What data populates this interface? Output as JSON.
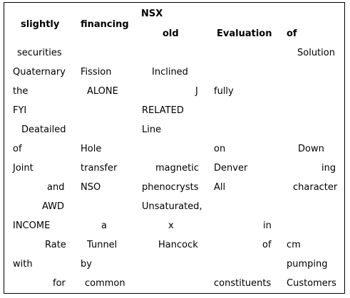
{
  "headers": [
    {
      "top": "",
      "bottom": "slightly"
    },
    {
      "top": "",
      "bottom": "financing"
    },
    {
      "top": "NSX",
      "bottom": "old"
    },
    {
      "top": "",
      "bottom": "Evaluation"
    },
    {
      "top": "",
      "bottom": "of"
    }
  ],
  "rows": [
    [
      "securities",
      "",
      "",
      "",
      "Solution"
    ],
    [
      "Quaternary",
      "Fission",
      "Inclined",
      "",
      ""
    ],
    [
      "the",
      "ALONE",
      "J",
      "fully",
      ""
    ],
    [
      "FYI",
      "",
      "RELATED",
      "",
      ""
    ],
    [
      "Deatailed",
      "",
      "Line",
      "",
      ""
    ],
    [
      "of",
      "Hole",
      "",
      "on",
      "Down"
    ],
    [
      "Joint",
      "transfer",
      "magnetic",
      "Denver",
      "ing"
    ],
    [
      "and",
      "NSO",
      "phenocrysts",
      "All",
      "character"
    ],
    [
      "AWD",
      "",
      "Unsaturated,",
      "",
      ""
    ],
    [
      "INCOME",
      "a",
      "x",
      "in",
      ""
    ],
    [
      "Rate",
      "Tunnel",
      "Hancock",
      "of",
      "cm"
    ],
    [
      "with",
      "by",
      "",
      "",
      "pumping"
    ],
    [
      "for",
      "common",
      "",
      "constituents",
      "Customers"
    ]
  ]
}
